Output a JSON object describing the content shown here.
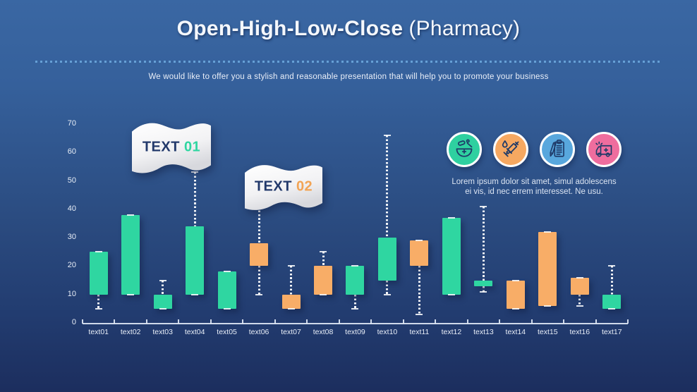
{
  "slide": {
    "title_main": "Open-High-Low-Close",
    "title_suffix": "(Pharmacy)",
    "subtitle": "We would like to offer you a stylish and reasonable presentation that will help you to promote your business"
  },
  "flags": [
    {
      "prefix": "TEXT",
      "number": "01",
      "number_color": "#2fd6a1",
      "anchor_category": "text04"
    },
    {
      "prefix": "TEXT",
      "number": "02",
      "number_color": "#f2a455",
      "anchor_category": "text06"
    }
  ],
  "info_panel": {
    "icons": [
      {
        "name": "mortar-pestle-icon",
        "bg": "#2fd0a0"
      },
      {
        "name": "syringe-icon",
        "bg": "#f6a861"
      },
      {
        "name": "clipboard-pen-icon",
        "bg": "#58a7dd"
      },
      {
        "name": "ambulance-icon",
        "bg": "#ef6d9e"
      }
    ],
    "text_line1": "Lorem ipsum dolor sit amet, simul adolescens",
    "text_line2": "ei vis, id nec errem interesset. Ne usu."
  },
  "chart_data": {
    "type": "ohlc-candlestick",
    "title": "",
    "xlabel": "",
    "ylabel": "",
    "ylim": [
      0,
      70
    ],
    "yticks": [
      0,
      10,
      20,
      30,
      40,
      50,
      60,
      70
    ],
    "grid": false,
    "legend": false,
    "colors": {
      "bullish": "#2fd6a1",
      "bearish": "#f8ad67",
      "wick": "#ffffff"
    },
    "categories": [
      "text01",
      "text02",
      "text03",
      "text04",
      "text05",
      "text06",
      "text07",
      "text08",
      "text09",
      "text10",
      "text11",
      "text12",
      "text13",
      "text14",
      "text15",
      "text16",
      "text17"
    ],
    "candles": [
      {
        "label": "text01",
        "open": 10,
        "close": 25,
        "high": 25,
        "low": 5,
        "direction": "up"
      },
      {
        "label": "text02",
        "open": 10,
        "close": 38,
        "high": 38,
        "low": 10,
        "direction": "up"
      },
      {
        "label": "text03",
        "open": 5,
        "close": 10,
        "high": 15,
        "low": 5,
        "direction": "up"
      },
      {
        "label": "text04",
        "open": 10,
        "close": 34,
        "high": 53,
        "low": 10,
        "direction": "up"
      },
      {
        "label": "text05",
        "open": 5,
        "close": 18,
        "high": 18,
        "low": 5,
        "direction": "up"
      },
      {
        "label": "text06",
        "open": 28,
        "close": 20,
        "high": 41,
        "low": 10,
        "direction": "down"
      },
      {
        "label": "text07",
        "open": 10,
        "close": 5,
        "high": 20,
        "low": 5,
        "direction": "down"
      },
      {
        "label": "text08",
        "open": 20,
        "close": 10,
        "high": 25,
        "low": 10,
        "direction": "down"
      },
      {
        "label": "text09",
        "open": 10,
        "close": 20,
        "high": 20,
        "low": 5,
        "direction": "up"
      },
      {
        "label": "text10",
        "open": 15,
        "close": 30,
        "high": 66,
        "low": 10,
        "direction": "up"
      },
      {
        "label": "text11",
        "open": 29,
        "close": 20,
        "high": 29,
        "low": 3,
        "direction": "down"
      },
      {
        "label": "text12",
        "open": 10,
        "close": 37,
        "high": 37,
        "low": 10,
        "direction": "up"
      },
      {
        "label": "text13",
        "open": 13,
        "close": 15,
        "high": 41,
        "low": 11,
        "direction": "up"
      },
      {
        "label": "text14",
        "open": 15,
        "close": 5,
        "high": 15,
        "low": 5,
        "direction": "down"
      },
      {
        "label": "text15",
        "open": 32,
        "close": 6,
        "high": 32,
        "low": 6,
        "direction": "down"
      },
      {
        "label": "text16",
        "open": 16,
        "close": 10,
        "high": 16,
        "low": 6,
        "direction": "down"
      },
      {
        "label": "text17",
        "open": 5,
        "close": 10,
        "high": 20,
        "low": 5,
        "direction": "up"
      }
    ]
  }
}
